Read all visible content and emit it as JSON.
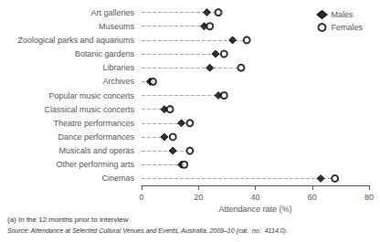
{
  "chart_data": {
    "type": "scatter",
    "orientation": "horizontal",
    "categories": [
      "Art galleries",
      "Museums",
      "Zoological parks and aquariums",
      "Botanic gardens",
      "Libraries",
      "Archives",
      "Popular music concerts",
      "Classical music concerts",
      "Theatre performances",
      "Dance performances",
      "Musicals and operas",
      "Other performing arts",
      "Cinemas"
    ],
    "series": [
      {
        "name": "Males",
        "color": "black",
        "marker": "diamond",
        "values": [
          23,
          22,
          32,
          26,
          24,
          3,
          27,
          8,
          14,
          8,
          11,
          14,
          63
        ]
      },
      {
        "name": "Females",
        "color": "black",
        "marker": "open_circle",
        "values": [
          27,
          24,
          37,
          29,
          35,
          4,
          29,
          10,
          17,
          11,
          17,
          15,
          68
        ]
      }
    ],
    "color": "#aaaaaa",
    "line_style": "dashed",
    "xlabel": "Attendance rate (%)",
    "xlim": [
      0,
      80
    ],
    "xticks": [
      0,
      20,
      40,
      60,
      80
    ],
    "grid": false,
    "legend": "upper right",
    "annotations": [
      "(a) In the 12 months prior to interview",
      "Source: Attendance at Selected Cultural Venues and Events, Australia, 2009–10 (cat.  no.  4114.0)."
    ]
  }
}
